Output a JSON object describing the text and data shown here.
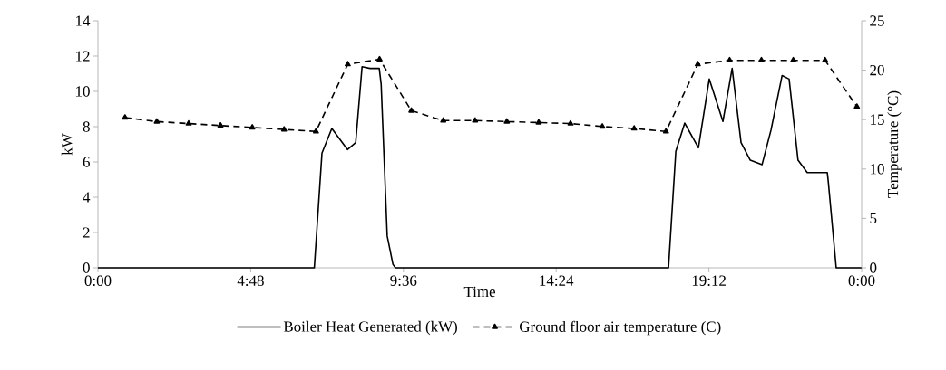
{
  "chart_data": {
    "type": "line",
    "xlabel": "Time",
    "ylabel": "kW",
    "y2label": "Temperature (°C)",
    "xlim": [
      0,
      24
    ],
    "xticks": [
      {
        "value": 0,
        "label": "0:00"
      },
      {
        "value": 4.8,
        "label": "4:48"
      },
      {
        "value": 9.6,
        "label": "9:36"
      },
      {
        "value": 14.4,
        "label": "14:24"
      },
      {
        "value": 19.2,
        "label": "19:12"
      },
      {
        "value": 24,
        "label": "0:00"
      }
    ],
    "ylim": [
      0,
      14
    ],
    "yticks": [
      0,
      2,
      4,
      6,
      8,
      10,
      12,
      14
    ],
    "y2lim": [
      0,
      25
    ],
    "y2ticks": [
      0,
      5,
      10,
      15,
      20,
      25
    ],
    "legend": "bottom",
    "grid": false,
    "series": [
      {
        "name": "Boiler Heat Generated (kW)",
        "color": "#000000",
        "line_style": "solid",
        "marker": "none",
        "x": [
          0,
          6.8,
          7.04,
          7.35,
          7.84,
          8.1,
          8.3,
          8.55,
          8.84,
          8.9,
          9.09,
          9.27,
          9.35,
          17.93,
          18.16,
          18.44,
          18.87,
          19.21,
          19.64,
          19.93,
          20.21,
          20.5,
          20.87,
          21.15,
          21.5,
          21.72,
          22.0,
          22.29,
          22.92,
          22.95,
          23.2,
          24
        ],
        "values": [
          0,
          0,
          6.5,
          7.9,
          6.7,
          7.1,
          11.4,
          11.3,
          11.3,
          10.4,
          1.8,
          0.2,
          0,
          0,
          6.6,
          8.2,
          6.8,
          10.7,
          8.3,
          11.3,
          7.1,
          6.1,
          5.85,
          7.8,
          10.9,
          10.7,
          6.1,
          5.4,
          5.4,
          4.9,
          0,
          0
        ]
      },
      {
        "name": "Ground floor air temperature (C)",
        "color": "#000000",
        "line_style": "dashed",
        "marker": "triangle",
        "axis": "y2",
        "x": [
          0.85,
          1.85,
          2.85,
          3.85,
          4.85,
          5.85,
          6.85,
          7.85,
          8.85,
          9.85,
          10.85,
          11.85,
          12.85,
          13.85,
          14.85,
          15.85,
          16.85,
          17.85,
          18.85,
          19.85,
          20.85,
          21.85,
          22.85,
          23.85
        ],
        "values": [
          15.2,
          14.8,
          14.6,
          14.4,
          14.2,
          14.0,
          13.8,
          20.6,
          21.1,
          15.9,
          14.9,
          14.9,
          14.8,
          14.7,
          14.6,
          14.3,
          14.1,
          13.8,
          20.6,
          21.0,
          21.0,
          21.0,
          21.0,
          16.3
        ]
      }
    ]
  }
}
